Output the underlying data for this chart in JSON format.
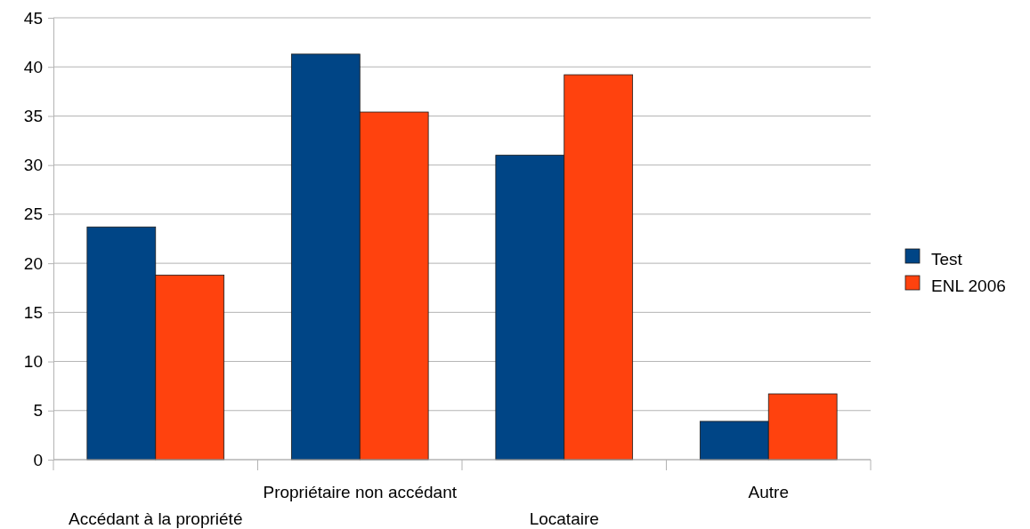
{
  "chart_data": {
    "type": "bar",
    "categories": [
      "Accédant à la propriété",
      "Propriétaire non accédant",
      "Locataire",
      "Autre"
    ],
    "series": [
      {
        "name": "Test",
        "color": "#004586",
        "values": [
          23.7,
          41.3,
          31,
          3.9
        ]
      },
      {
        "name": "ENL 2006",
        "color": "#ff420e",
        "values": [
          18.8,
          35.4,
          39.2,
          6.7
        ]
      }
    ],
    "ylim": [
      0,
      45
    ],
    "yticks": [
      0,
      5,
      10,
      15,
      20,
      25,
      30,
      35,
      40,
      45
    ],
    "grid": "y",
    "legend": "right"
  }
}
